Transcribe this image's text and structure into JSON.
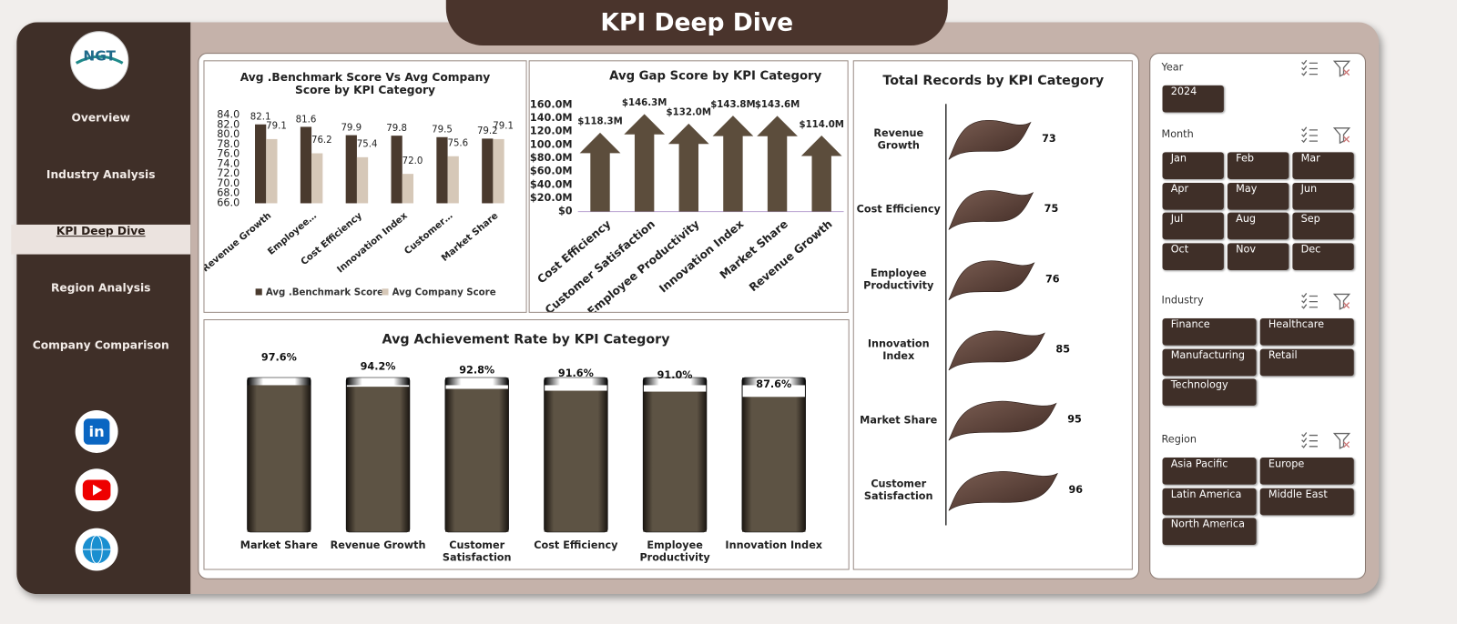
{
  "header": {
    "title": "KPI Deep Dive"
  },
  "sidebar": {
    "logo": "NGT",
    "nav": [
      "Overview",
      "Industry Analysis",
      "KPI Deep Dive",
      "Region Analysis",
      "Company Comparison"
    ]
  },
  "chart_data": [
    {
      "type": "bar",
      "title": "Avg .Benchmark Score Vs Avg Company Score by KPI Category",
      "categories": [
        "Revenue Growth",
        "Employee…",
        "Cost Efficiency",
        "Innovation Index",
        "Customer…",
        "Market Share"
      ],
      "series": [
        {
          "name": "Avg .Benchmark Score",
          "color": "#4a3a2e",
          "values": [
            82.1,
            81.6,
            79.9,
            79.8,
            79.5,
            79.2
          ]
        },
        {
          "name": "Avg Company Score",
          "color": "#d6c8b8",
          "values": [
            79.1,
            76.2,
            75.4,
            72,
            75.6,
            79.1
          ],
          "value_labels": [
            "79.1",
            "76.2",
            "75.4",
            "72.0",
            "75.6",
            "79.1"
          ]
        }
      ],
      "ylim": [
        66,
        84
      ],
      "yticks": [
        {
          "value": 66,
          "label": "66.0"
        },
        {
          "value": 68,
          "label": "68.0"
        },
        {
          "value": 70,
          "label": "70.0"
        },
        {
          "value": 72,
          "label": "72.0"
        },
        {
          "value": 74,
          "label": "74.0"
        },
        {
          "value": 76,
          "label": "76.0"
        },
        {
          "value": 78,
          "label": "78.0"
        },
        {
          "value": 80,
          "label": "80.0"
        },
        {
          "value": 82,
          "label": "82.0"
        },
        {
          "value": 84,
          "label": "84.0"
        }
      ]
    },
    {
      "type": "arrow",
      "title": "Avg Gap Score by KPI Category",
      "categories": [
        "Cost Efficiency",
        "Customer Satisfaction",
        "Employee Productivity",
        "Innovation Index",
        "Market Share",
        "Revenue Growth"
      ],
      "values": [
        118300000,
        146300000,
        132000000,
        143800000,
        143600000,
        114000000
      ],
      "value_labels": [
        "$118.3M",
        "$146.3M",
        "$132.0M",
        "$143.8M",
        "$143.6M",
        "$114.0M"
      ],
      "color": "#5c4d3c",
      "ylim": [
        0,
        160000000
      ],
      "yticks": [
        {
          "value": 0,
          "label": "$0"
        },
        {
          "value": 20000000,
          "label": "$20.0M"
        },
        {
          "value": 40000000,
          "label": "$40.0M"
        },
        {
          "value": 60000000,
          "label": "$60.0M"
        },
        {
          "value": 80000000,
          "label": "$80.0M"
        },
        {
          "value": 100000000,
          "label": "$100.0M"
        },
        {
          "value": 120000000,
          "label": "$120.0M"
        },
        {
          "value": 140000000,
          "label": "$140.0M"
        },
        {
          "value": 160000000,
          "label": "$160.0M"
        }
      ]
    },
    {
      "type": "capsule",
      "title": "Avg Achievement Rate by KPI Category",
      "categories": [
        "Market Share",
        "Revenue Growth",
        "Customer Satisfaction",
        "Cost Efficiency",
        "Employee Productivity",
        "Innovation Index"
      ],
      "values": [
        97.6,
        94.2,
        92.8,
        91.6,
        91.0,
        87.6
      ],
      "value_labels": [
        "97.6%",
        "94.2%",
        "92.8%",
        "91.6%",
        "91.0%",
        "87.6%"
      ],
      "ylim": [
        0,
        100
      ]
    },
    {
      "type": "flag",
      "title": "Total Records by KPI Category",
      "categories": [
        "Revenue Growth",
        "Cost Efficiency",
        "Employee Productivity",
        "Innovation Index",
        "Market Share",
        "Customer Satisfaction"
      ],
      "values": [
        73,
        75,
        76,
        85,
        95,
        96
      ],
      "xlim": [
        0,
        100
      ]
    }
  ],
  "slicers": [
    {
      "title": "Year",
      "items": [
        "2024"
      ]
    },
    {
      "title": "Month",
      "items": [
        "Jan",
        "Feb",
        "Mar",
        "Apr",
        "May",
        "Jun",
        "Jul",
        "Aug",
        "Sep",
        "Oct",
        "Nov",
        "Dec"
      ]
    },
    {
      "title": "Industry",
      "items": [
        "Finance",
        "Healthcare",
        "Manufacturing",
        "Retail",
        "Technology"
      ]
    },
    {
      "title": "Region",
      "items": [
        "Asia Pacific",
        "Europe",
        "Latin America",
        "Middle East",
        "North America"
      ]
    }
  ]
}
